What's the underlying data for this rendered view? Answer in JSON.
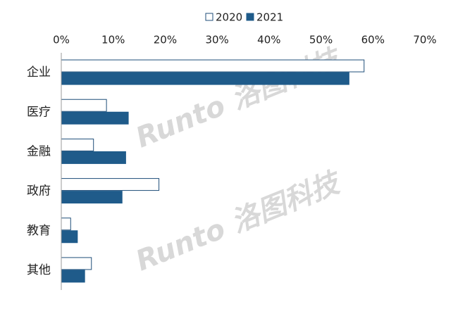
{
  "chart_data": {
    "type": "bar",
    "orientation": "horizontal",
    "categories": [
      "企业",
      "医疗",
      "金融",
      "政府",
      "教育",
      "其他"
    ],
    "series": [
      {
        "name": "2020",
        "color": "#ffffff",
        "edge_color": "#1f4e79",
        "values": [
          58.3,
          8.7,
          6.2,
          18.8,
          1.8,
          5.8
        ]
      },
      {
        "name": "2021",
        "color": "#1f5b8a",
        "edge_color": "#1f5b8a",
        "values": [
          55.4,
          12.9,
          12.4,
          11.7,
          3.1,
          4.5
        ]
      }
    ],
    "xlim": [
      0,
      70
    ],
    "xticks": [
      {
        "value": 0,
        "label": "0%"
      },
      {
        "value": 10,
        "label": "10%"
      },
      {
        "value": 20,
        "label": "20%"
      },
      {
        "value": 30,
        "label": "30%"
      },
      {
        "value": 40,
        "label": "40%"
      },
      {
        "value": 50,
        "label": "50%"
      },
      {
        "value": 60,
        "label": "60%"
      },
      {
        "value": 70,
        "label": "70%"
      }
    ],
    "grid": false,
    "legend": "top",
    "watermark": "Runto 洛图科技"
  }
}
